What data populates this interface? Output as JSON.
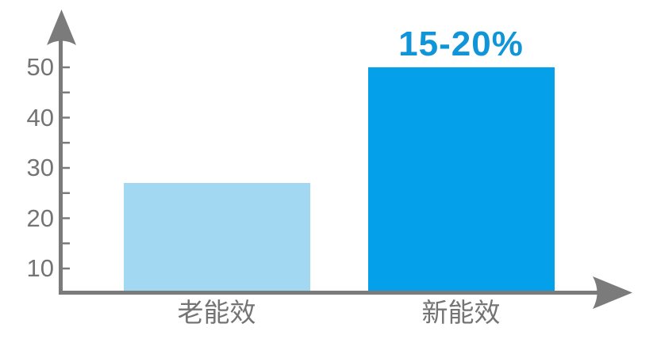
{
  "chart_data": {
    "type": "bar",
    "title": "",
    "xlabel": "",
    "ylabel": "",
    "categories": [
      "老能效",
      "新能效"
    ],
    "values": [
      27,
      50
    ],
    "bar_colors": [
      "#a3d8f3",
      "#04a0e9"
    ],
    "annotations": [
      {
        "text": "15-20%",
        "bar_index": 1,
        "color": "#0f95d8"
      }
    ],
    "y_axis": {
      "major_ticks": [
        10,
        20,
        30,
        40,
        50
      ],
      "minor_tick_step": 5,
      "has_arrow": true
    },
    "x_axis": {
      "has_arrow": true
    },
    "ylim": [
      5,
      55
    ],
    "grid": false,
    "legend": false,
    "axis_color": "#7b7b7b",
    "text_color": "#747474",
    "background": "#ffffff"
  }
}
